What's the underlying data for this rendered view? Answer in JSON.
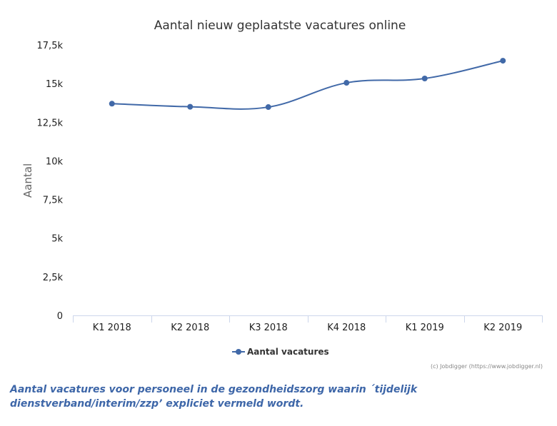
{
  "chart_data": {
    "type": "line",
    "title": "Aantal nieuw geplaatste vacatures online",
    "xlabel": "",
    "ylabel": "Aantal",
    "categories": [
      "K1 2018",
      "K2 2018",
      "K3 2018",
      "K4 2018",
      "K1 2019",
      "K2 2019"
    ],
    "series": [
      {
        "name": "Aantal vacatures",
        "values": [
          13700,
          13500,
          13480,
          15050,
          15330,
          16480
        ]
      }
    ],
    "ylim": [
      0,
      17500
    ],
    "yticks": [
      0,
      2500,
      5000,
      7500,
      10000,
      12500,
      15000,
      17500
    ],
    "ytick_labels": [
      "0",
      "2,5k",
      "5k",
      "7,5k",
      "10k",
      "12,5k",
      "15k",
      "17,5k"
    ],
    "grid": false,
    "legend": "bottom-center",
    "colors": {
      "line": "#4169a8",
      "axis": "#ccd6eb"
    }
  },
  "credits": "(c) Jobdigger (https://www.jobdigger.nl)",
  "caption": "Aantal vacatures voor personeel in de gezondheidszorg waarin ´tijdelijk dienstverband/interim/zzp’ expliciet vermeld wordt."
}
